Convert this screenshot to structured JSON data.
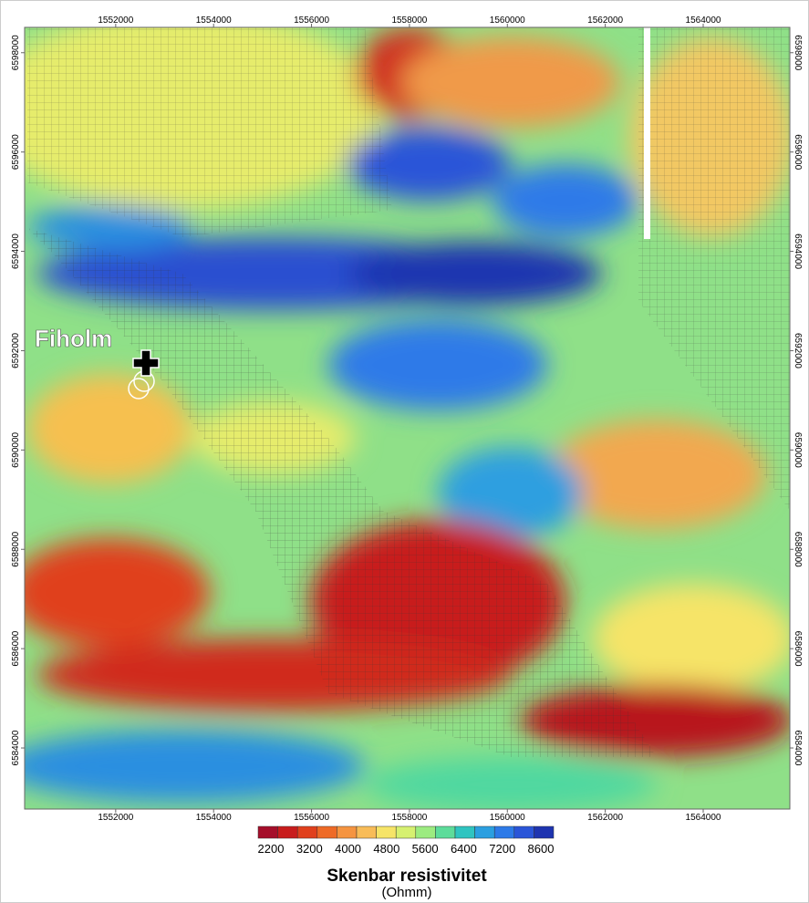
{
  "map": {
    "label": "Fiholm",
    "xticks": [
      1552000,
      1554000,
      1556000,
      1558000,
      1560000,
      1562000,
      1564000
    ],
    "yticks": [
      6584000,
      6586000,
      6588000,
      6590000,
      6592000,
      6594000,
      6596000,
      6598000
    ],
    "xlim": [
      1550140,
      1565770
    ],
    "ylim": [
      6582770,
      6598510
    ]
  },
  "colorbar": {
    "title": "Skenbar resistivitet",
    "unit": "(Ohmm)",
    "ticks": [
      2200,
      3200,
      4000,
      4800,
      5600,
      6400,
      7200,
      8600
    ],
    "colors": [
      "#a50e2a",
      "#c81c1c",
      "#e0401c",
      "#ee6a26",
      "#f59440",
      "#f8bc58",
      "#f6e468",
      "#d6f070",
      "#9ceb80",
      "#5ddc9a",
      "#2fc4c0",
      "#2b9fe0",
      "#2d7ae8",
      "#2a55d8",
      "#1e34b0"
    ]
  }
}
